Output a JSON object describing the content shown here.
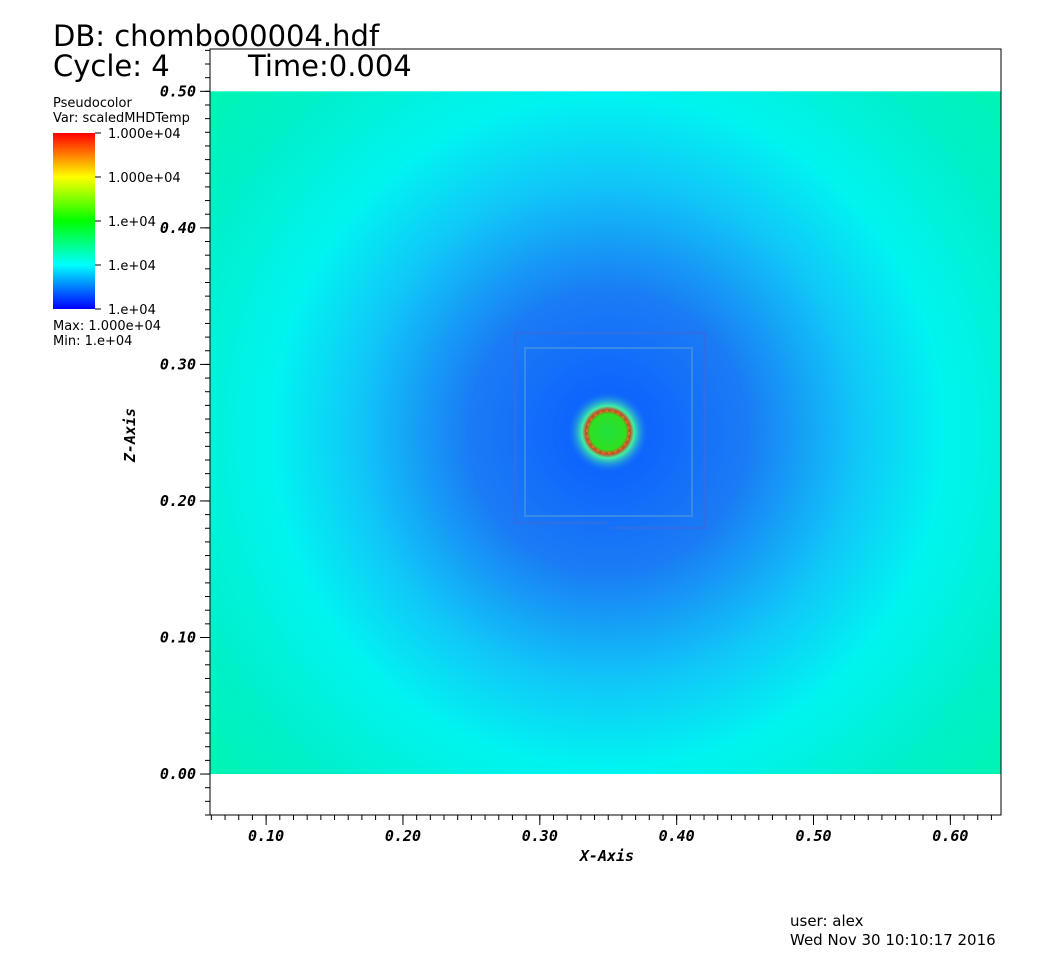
{
  "chart_data": {
    "type": "pseudocolor",
    "title": "DB: chombo00004.hdf",
    "cycle": "Cycle: 4",
    "time": "Time:0.004",
    "plot_name": "Pseudocolor",
    "variable": "Var: scaledMHDTemp",
    "legend_labels": [
      "1.000e+04",
      "1.000e+04",
      "1.e+04",
      "1.e+04",
      "1.e+04"
    ],
    "max_label": "Max:  1.000e+04",
    "min_label": "Min:  1.e+04",
    "x_label": "X-Axis",
    "y_label": "Z-Axis",
    "xlim": [
      0.059,
      0.637
    ],
    "ylim": [
      -0.03,
      0.531
    ],
    "xticks": [
      {
        "value": 0.1,
        "label": "0.10"
      },
      {
        "value": 0.2,
        "label": "0.20"
      },
      {
        "value": 0.3,
        "label": "0.30"
      },
      {
        "value": 0.4,
        "label": "0.40"
      },
      {
        "value": 0.5,
        "label": "0.50"
      },
      {
        "value": 0.6,
        "label": "0.60"
      }
    ],
    "yticks": [
      {
        "value": 0,
        "label": "0.00"
      },
      {
        "value": 0.1,
        "label": "0.10"
      },
      {
        "value": 0.2,
        "label": "0.20"
      },
      {
        "value": 0.3,
        "label": "0.30"
      },
      {
        "value": 0.4,
        "label": "0.40"
      },
      {
        "value": 0.5,
        "label": "0.50"
      }
    ],
    "user": "user: alex",
    "date": "Wed Nov 30 10:10:17 2016"
  }
}
